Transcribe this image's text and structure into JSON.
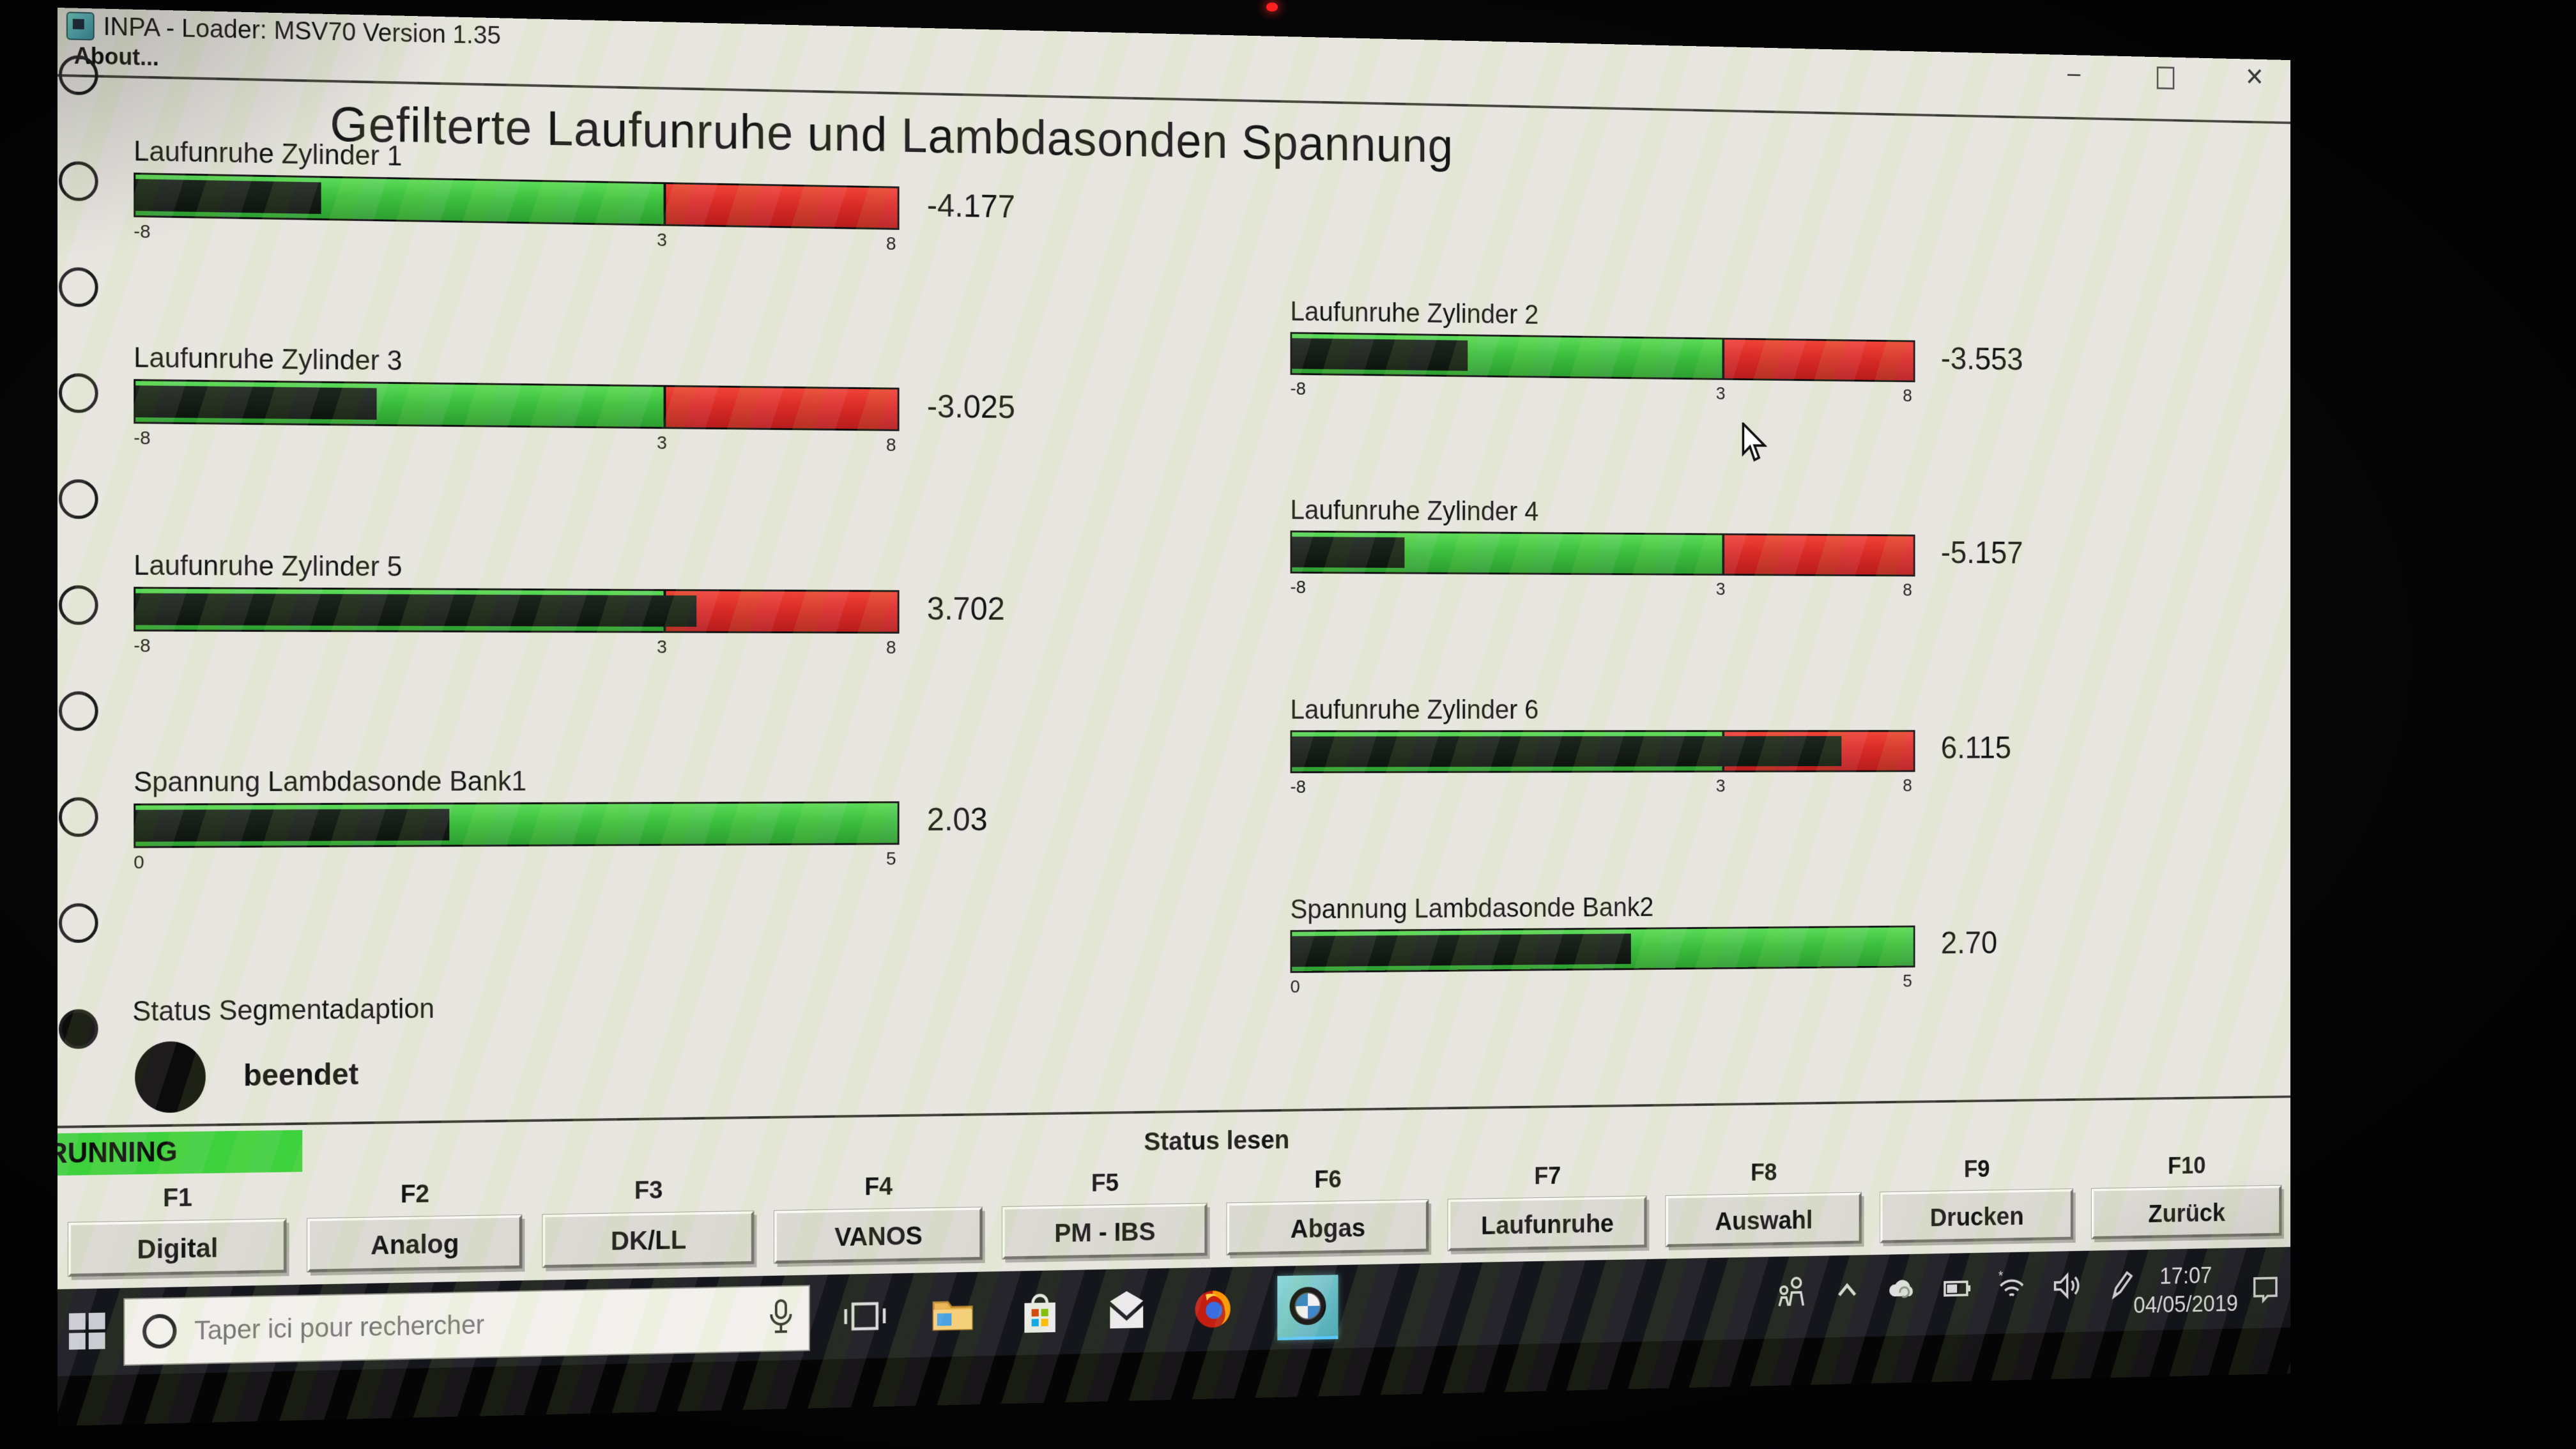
{
  "window": {
    "title": "INPA - Loader:  MSV70 Version 1.35",
    "menu_about": "About...",
    "minimize_label": "–",
    "close_label": "✕",
    "page_title": "Gefilterte Laufunruhe und Lambdasonden Spannung"
  },
  "gauges": [
    {
      "id": "cyl1",
      "label": "Laufunruhe Zylinder 1",
      "value": -4.177,
      "display": "-4.177",
      "min": -8,
      "max": 8,
      "threshold": 3,
      "tick_min": "-8",
      "tick_thr": "3",
      "tick_max": "8",
      "kind": "laufunruhe",
      "column": "left",
      "row": 0
    },
    {
      "id": "cyl3",
      "label": "Laufunruhe Zylinder 3",
      "value": -3.025,
      "display": "-3.025",
      "min": -8,
      "max": 8,
      "threshold": 3,
      "tick_min": "-8",
      "tick_thr": "3",
      "tick_max": "8",
      "kind": "laufunruhe",
      "column": "left",
      "row": 1
    },
    {
      "id": "cyl5",
      "label": "Laufunruhe Zylinder 5",
      "value": 3.702,
      "display": "3.702",
      "min": -8,
      "max": 8,
      "threshold": 3,
      "tick_min": "-8",
      "tick_thr": "3",
      "tick_max": "8",
      "kind": "laufunruhe",
      "column": "left",
      "row": 2
    },
    {
      "id": "bank1",
      "label": "Spannung Lambdasonde Bank1",
      "value": 2.03,
      "display": "2.03",
      "min": 0,
      "max": 5,
      "tick_min": "0",
      "tick_max": "5",
      "kind": "lambda",
      "column": "left",
      "row": 3
    },
    {
      "id": "cyl2",
      "label": "Laufunruhe Zylinder 2",
      "value": -3.553,
      "display": "-3.553",
      "min": -8,
      "max": 8,
      "threshold": 3,
      "tick_min": "-8",
      "tick_thr": "3",
      "tick_max": "8",
      "kind": "laufunruhe",
      "column": "right",
      "row": 0
    },
    {
      "id": "cyl4",
      "label": "Laufunruhe Zylinder 4",
      "value": -5.157,
      "display": "-5.157",
      "min": -8,
      "max": 8,
      "threshold": 3,
      "tick_min": "-8",
      "tick_thr": "3",
      "tick_max": "8",
      "kind": "laufunruhe",
      "column": "right",
      "row": 1
    },
    {
      "id": "cyl6",
      "label": "Laufunruhe Zylinder 6",
      "value": 6.115,
      "display": "6.115",
      "min": -8,
      "max": 8,
      "threshold": 3,
      "tick_min": "-8",
      "tick_thr": "3",
      "tick_max": "8",
      "kind": "laufunruhe",
      "column": "right",
      "row": 2
    },
    {
      "id": "bank2",
      "label": "Spannung Lambdasonde Bank2",
      "value": 2.7,
      "display": "2.70",
      "min": 0,
      "max": 5,
      "tick_min": "0",
      "tick_max": "5",
      "kind": "lambda",
      "column": "right",
      "row": 3
    }
  ],
  "chart_data": {
    "type": "bar",
    "title": "Gefilterte Laufunruhe und Lambdasonden Spannung",
    "categories": [
      "Laufunruhe Zylinder 1",
      "Laufunruhe Zylinder 2",
      "Laufunruhe Zylinder 3",
      "Laufunruhe Zylinder 4",
      "Laufunruhe Zylinder 5",
      "Laufunruhe Zylinder 6",
      "Spannung Lambdasonde Bank1",
      "Spannung Lambdasonde Bank2"
    ],
    "values": [
      -4.177,
      -3.553,
      -3.025,
      -5.157,
      3.702,
      6.115,
      2.03,
      2.7
    ],
    "axis_ranges": {
      "laufunruhe": [
        -8,
        8
      ],
      "lambda": [
        0,
        5
      ]
    },
    "laufunruhe_red_zone_start": 3,
    "legend_position": "none",
    "grid": false
  },
  "status_segment": {
    "label": "Status Segmentadaption",
    "value": "beendet"
  },
  "status_strip": {
    "running": "RUNNING",
    "title": "Status lesen"
  },
  "function_keys": [
    {
      "key": "F1",
      "label": "Digital"
    },
    {
      "key": "F2",
      "label": "Analog"
    },
    {
      "key": "F3",
      "label": "DK/LL"
    },
    {
      "key": "F4",
      "label": "VANOS"
    },
    {
      "key": "F5",
      "label": "PM - IBS"
    },
    {
      "key": "F6",
      "label": "Abgas"
    },
    {
      "key": "F7",
      "label": "Laufunruhe"
    },
    {
      "key": "F8",
      "label": "Auswahl"
    },
    {
      "key": "F9",
      "label": "Drucken"
    },
    {
      "key": "F10",
      "label": "Zurück"
    }
  ],
  "taskbar": {
    "search_placeholder": "Taper ici pour rechercher",
    "app_icons": [
      "task-view",
      "file-explorer",
      "microsoft-store",
      "mail",
      "firefox",
      "bmw-inpa"
    ],
    "tray_icons": [
      "people",
      "chevron-up",
      "onedrive",
      "battery",
      "wifi-disconnected",
      "volume",
      "pen"
    ],
    "time": "17:07",
    "date": "04/05/2019"
  },
  "colors": {
    "gauge_green": "#3cbf3e",
    "gauge_red": "#d92b27",
    "gauge_fill": "#10170f",
    "running_green": "#3ed13e",
    "window_bg": "#e7e6df",
    "taskbar_bg": "#14161b"
  }
}
